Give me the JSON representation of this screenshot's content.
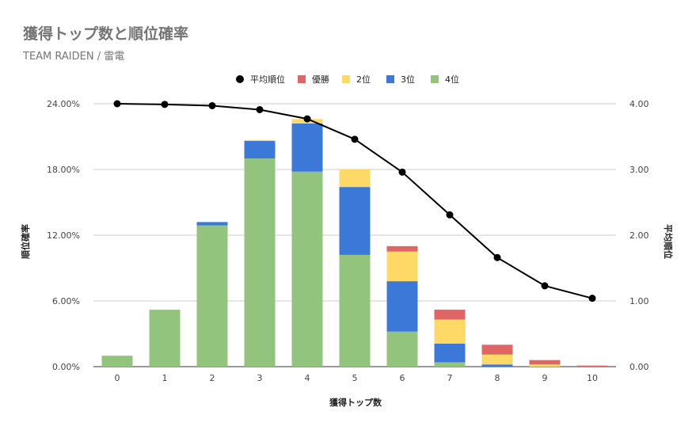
{
  "title": "獲得トップ数と順位確率",
  "subtitle": "TEAM RAIDEN / 雷電",
  "chart_data": {
    "type": "bar",
    "stacked": true,
    "title": "獲得トップ数と順位確率",
    "subtitle": "TEAM RAIDEN / 雷電",
    "xlabel": "獲得トップ数",
    "ylabel": "順位確率",
    "y2label": "平均順位",
    "categories": [
      "0",
      "1",
      "2",
      "3",
      "4",
      "5",
      "6",
      "7",
      "8",
      "9",
      "10"
    ],
    "ylim": [
      0,
      24
    ],
    "yticks": [
      "0.00%",
      "6.00%",
      "12.00%",
      "18.00%",
      "24.00%"
    ],
    "y2lim": [
      0,
      4
    ],
    "y2ticks": [
      "0.00",
      "1.00",
      "2.00",
      "3.00",
      "4.00"
    ],
    "grid": true,
    "legend_position": "top",
    "series": [
      {
        "name": "4位",
        "color": "#93c47d",
        "values": [
          1.0,
          5.2,
          12.9,
          19.0,
          17.8,
          10.2,
          3.2,
          0.4,
          0.0,
          0.0,
          0.0
        ]
      },
      {
        "name": "3位",
        "color": "#3c78d8",
        "values": [
          0.0,
          0.0,
          0.3,
          1.6,
          4.4,
          6.2,
          4.6,
          1.7,
          0.2,
          0.0,
          0.0
        ]
      },
      {
        "name": "2位",
        "color": "#ffd966",
        "values": [
          0.0,
          0.0,
          0.0,
          0.1,
          0.4,
          1.6,
          2.7,
          2.2,
          0.9,
          0.2,
          0.0
        ]
      },
      {
        "name": "優勝",
        "color": "#e06666",
        "values": [
          0.0,
          0.0,
          0.0,
          0.0,
          0.0,
          0.0,
          0.5,
          0.9,
          0.9,
          0.4,
          0.1
        ]
      }
    ],
    "line": {
      "name": "平均順位",
      "color": "#000000",
      "values": [
        4.0,
        3.99,
        3.97,
        3.91,
        3.77,
        3.46,
        2.96,
        2.31,
        1.66,
        1.23,
        1.04
      ]
    },
    "legend_order": [
      "平均順位",
      "優勝",
      "2位",
      "3位",
      "4位"
    ]
  }
}
